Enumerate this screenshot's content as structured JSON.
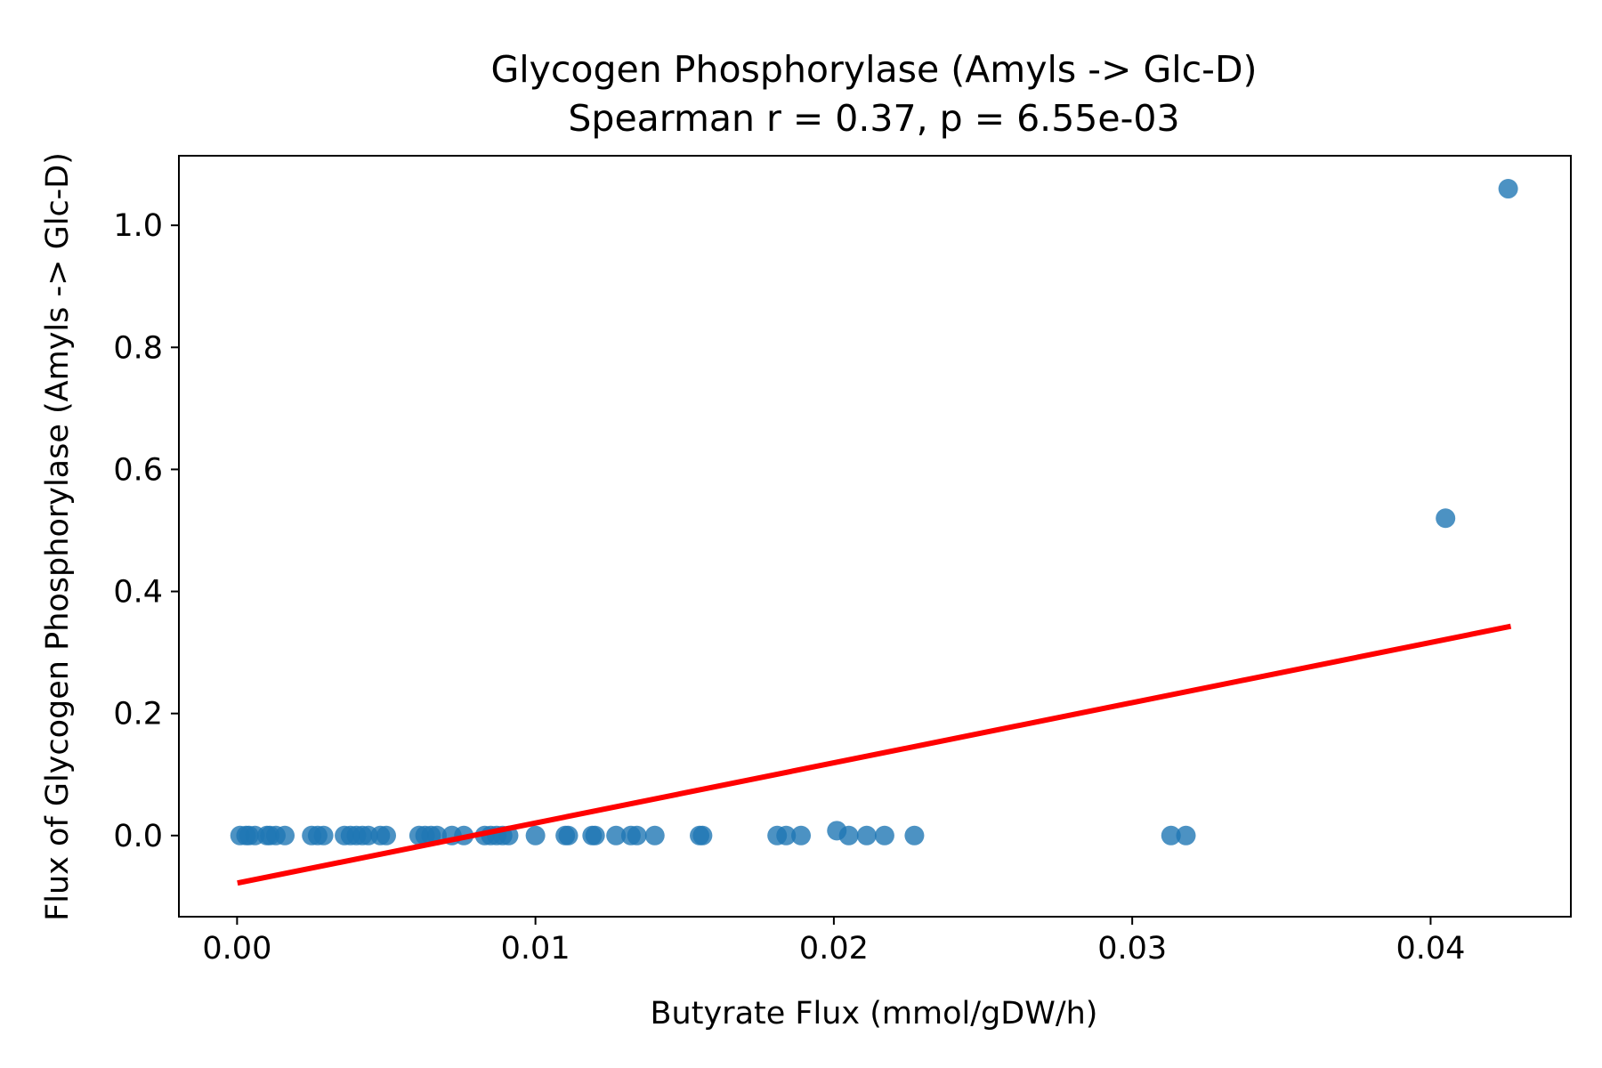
{
  "chart_data": {
    "type": "scatter",
    "title": "Glycogen Phosphorylase (Amyls -> Glc-D)",
    "subtitle": "Spearman r = 0.37, p = 6.55e-03",
    "xlabel": "Butyrate Flux (mmol/gDW/h)",
    "ylabel": "Flux of Glycogen Phosphorylase (Amyls -> Glc-D)",
    "xlim": [
      -0.00195,
      0.0447
    ],
    "ylim": [
      -0.133,
      1.114
    ],
    "xticks": [
      0.0,
      0.01,
      0.02,
      0.03,
      0.04
    ],
    "xtick_labels": [
      "0.00",
      "0.01",
      "0.02",
      "0.03",
      "0.04"
    ],
    "yticks": [
      0.0,
      0.2,
      0.4,
      0.6,
      0.8,
      1.0
    ],
    "ytick_labels": [
      "0.0",
      "0.2",
      "0.4",
      "0.6",
      "0.8",
      "1.0"
    ],
    "grid": false,
    "marker_color": "#1f77b4",
    "points": {
      "x": [
        0.0001,
        0.0003,
        0.0004,
        0.0006,
        0.001,
        0.0011,
        0.0013,
        0.0016,
        0.0025,
        0.0027,
        0.0029,
        0.0036,
        0.0038,
        0.004,
        0.0042,
        0.0044,
        0.0048,
        0.005,
        0.0061,
        0.0063,
        0.0065,
        0.0067,
        0.0072,
        0.0076,
        0.0083,
        0.0085,
        0.0087,
        0.0089,
        0.0091,
        0.01,
        0.011,
        0.0111,
        0.0119,
        0.012,
        0.0127,
        0.0132,
        0.0134,
        0.014,
        0.0155,
        0.0156,
        0.0181,
        0.0184,
        0.0189,
        0.0201,
        0.0205,
        0.0211,
        0.0217,
        0.0227,
        0.0313,
        0.0318,
        0.0405,
        0.0426
      ],
      "y": [
        0.0,
        0.0,
        0.0,
        0.0,
        0.0,
        0.0,
        0.0,
        0.0,
        0.0,
        0.0,
        0.0,
        0.0,
        0.0,
        0.0,
        0.0,
        0.0,
        0.0,
        0.0,
        0.0,
        0.0,
        0.0,
        0.0,
        0.0,
        0.0,
        0.0,
        0.0,
        0.0,
        0.0,
        0.0,
        0.0,
        0.0,
        0.0,
        0.0,
        0.0,
        0.0,
        0.0,
        0.0,
        0.0,
        0.0,
        0.0,
        0.0,
        0.0,
        0.0,
        0.008,
        0.0,
        0.0,
        0.0,
        0.0,
        0.0,
        0.0,
        0.52,
        1.06
      ]
    },
    "fit_line": {
      "color": "#ff0000",
      "x": [
        0.0001,
        0.0426
      ],
      "y": [
        -0.077,
        0.342
      ]
    }
  }
}
